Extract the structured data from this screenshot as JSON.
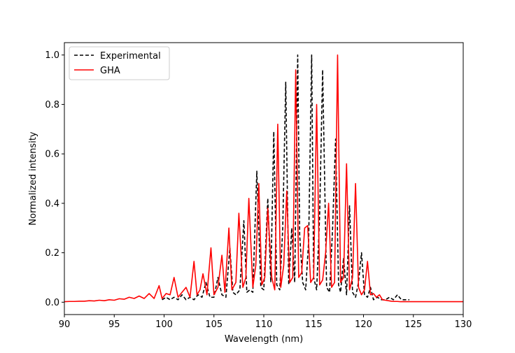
{
  "chart_data": {
    "type": "line",
    "title": "",
    "xlabel": "Wavelength (nm)",
    "ylabel": "Normalized intensity",
    "xlim": [
      90,
      130
    ],
    "ylim": [
      -0.05,
      1.05
    ],
    "xticks": [
      90,
      95,
      100,
      105,
      110,
      115,
      120,
      125,
      130
    ],
    "xtick_labels": [
      "90",
      "95",
      "100",
      "105",
      "110",
      "115",
      "120",
      "125",
      "130"
    ],
    "yticks": [
      0.0,
      0.2,
      0.4,
      0.6,
      0.8,
      1.0
    ],
    "ytick_labels": [
      "0.0",
      "0.2",
      "0.4",
      "0.6",
      "0.8",
      "1.0"
    ],
    "grid": false,
    "legend_position": "top-left",
    "series": [
      {
        "name": "Experimental",
        "color": "#000000",
        "style": "dashed",
        "x": [
          99.8,
          100.2,
          100.6,
          101.0,
          101.4,
          101.8,
          102.2,
          102.6,
          103.0,
          103.4,
          103.8,
          104.2,
          104.6,
          105.0,
          105.4,
          105.8,
          106.2,
          106.6,
          106.9,
          107.2,
          107.6,
          108.0,
          108.3,
          108.6,
          108.9,
          109.3,
          109.7,
          110.0,
          110.4,
          110.7,
          111.0,
          111.3,
          111.6,
          111.9,
          112.2,
          112.5,
          112.8,
          113.1,
          113.4,
          113.6,
          113.9,
          114.2,
          114.5,
          114.8,
          115.0,
          115.3,
          115.6,
          115.9,
          116.3,
          116.6,
          116.9,
          117.2,
          117.5,
          117.7,
          118.0,
          118.3,
          118.6,
          118.9,
          119.2,
          119.5,
          119.8,
          120.1,
          120.4,
          120.7,
          121.0,
          121.4,
          121.8,
          122.2,
          122.6,
          123.0,
          123.4,
          123.8,
          124.2,
          124.6
        ],
        "y": [
          0.01,
          0.02,
          0.01,
          0.02,
          0.01,
          0.03,
          0.01,
          0.02,
          0.01,
          0.03,
          0.02,
          0.08,
          0.02,
          0.02,
          0.1,
          0.03,
          0.02,
          0.22,
          0.04,
          0.03,
          0.05,
          0.33,
          0.04,
          0.05,
          0.04,
          0.53,
          0.06,
          0.05,
          0.42,
          0.08,
          0.69,
          0.07,
          0.05,
          0.3,
          0.89,
          0.07,
          0.3,
          0.08,
          1.0,
          0.27,
          0.08,
          0.05,
          0.25,
          1.0,
          0.1,
          0.05,
          0.35,
          0.94,
          0.06,
          0.04,
          0.3,
          0.66,
          0.07,
          0.04,
          0.18,
          0.03,
          0.39,
          0.04,
          0.02,
          0.08,
          0.2,
          0.03,
          0.02,
          0.06,
          0.01,
          0.02,
          0.01,
          0.01,
          0.02,
          0.01,
          0.03,
          0.01,
          0.01,
          0.01
        ]
      },
      {
        "name": "GHA",
        "color": "#ff0000",
        "style": "solid",
        "x": [
          90.0,
          90.5,
          91.0,
          91.5,
          92.0,
          92.5,
          93.0,
          93.5,
          94.0,
          94.5,
          95.0,
          95.5,
          96.0,
          96.5,
          97.0,
          97.5,
          98.0,
          98.5,
          99.0,
          99.5,
          99.8,
          100.2,
          100.6,
          101.0,
          101.4,
          101.8,
          102.2,
          102.6,
          103.0,
          103.3,
          103.6,
          103.9,
          104.3,
          104.7,
          105.0,
          105.4,
          105.8,
          106.1,
          106.5,
          106.8,
          107.2,
          107.5,
          107.9,
          108.2,
          108.5,
          108.9,
          109.2,
          109.5,
          109.8,
          110.1,
          110.4,
          110.8,
          111.1,
          111.4,
          111.7,
          112.0,
          112.3,
          112.6,
          112.9,
          113.2,
          113.5,
          113.8,
          114.1,
          114.4,
          114.7,
          115.0,
          115.3,
          115.6,
          115.9,
          116.2,
          116.5,
          116.8,
          117.1,
          117.4,
          117.7,
          118.0,
          118.3,
          118.6,
          118.9,
          119.2,
          119.5,
          119.8,
          120.1,
          120.4,
          120.7,
          121.0,
          121.3,
          121.6,
          121.9,
          122.2,
          122.5,
          122.8,
          123.1,
          123.4,
          123.7,
          124.0,
          124.5,
          125.0,
          126.0,
          127.0,
          128.0,
          129.0,
          130.0
        ],
        "y": [
          0.002,
          0.003,
          0.003,
          0.004,
          0.004,
          0.006,
          0.005,
          0.008,
          0.006,
          0.01,
          0.008,
          0.014,
          0.012,
          0.02,
          0.015,
          0.025,
          0.015,
          0.035,
          0.015,
          0.067,
          0.015,
          0.035,
          0.03,
          0.1,
          0.02,
          0.04,
          0.06,
          0.02,
          0.165,
          0.03,
          0.05,
          0.115,
          0.03,
          0.22,
          0.03,
          0.06,
          0.19,
          0.04,
          0.3,
          0.05,
          0.08,
          0.36,
          0.06,
          0.1,
          0.42,
          0.06,
          0.15,
          0.48,
          0.07,
          0.1,
          0.38,
          0.1,
          0.05,
          0.72,
          0.06,
          0.15,
          0.45,
          0.08,
          0.1,
          0.94,
          0.1,
          0.12,
          0.3,
          0.31,
          0.08,
          0.1,
          0.8,
          0.07,
          0.09,
          0.2,
          0.4,
          0.06,
          0.08,
          1.0,
          0.08,
          0.1,
          0.56,
          0.05,
          0.1,
          0.48,
          0.06,
          0.03,
          0.05,
          0.165,
          0.03,
          0.035,
          0.02,
          0.03,
          0.01,
          0.008,
          0.006,
          0.004,
          0.003,
          0.003,
          0.002,
          0.002,
          0.002,
          0.002,
          0.002,
          0.002,
          0.002,
          0.002,
          0.002
        ]
      }
    ]
  }
}
